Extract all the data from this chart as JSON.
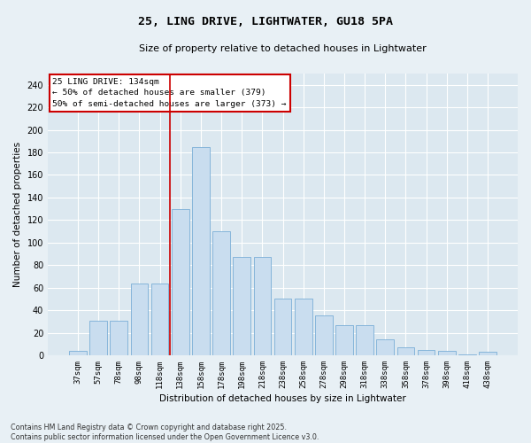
{
  "title_line1": "25, LING DRIVE, LIGHTWATER, GU18 5PA",
  "title_line2": "Size of property relative to detached houses in Lightwater",
  "xlabel": "Distribution of detached houses by size in Lightwater",
  "ylabel": "Number of detached properties",
  "bar_color": "#c9ddef",
  "bar_edge_color": "#7aaed6",
  "background_color": "#dce8f0",
  "fig_background_color": "#e8f0f5",
  "grid_color": "#ffffff",
  "categories": [
    "37sqm",
    "57sqm",
    "78sqm",
    "98sqm",
    "118sqm",
    "138sqm",
    "158sqm",
    "178sqm",
    "198sqm",
    "218sqm",
    "238sqm",
    "258sqm",
    "278sqm",
    "298sqm",
    "318sqm",
    "338sqm",
    "358sqm",
    "378sqm",
    "398sqm",
    "418sqm",
    "438sqm"
  ],
  "values": [
    4,
    31,
    31,
    64,
    64,
    130,
    185,
    110,
    87,
    87,
    50,
    50,
    35,
    27,
    27,
    14,
    7,
    5,
    4,
    1,
    3
  ],
  "vline_color": "#cc0000",
  "vline_pos": 4.5,
  "annotation_text_line1": "25 LING DRIVE: 134sqm",
  "annotation_text_line2": "← 50% of detached houses are smaller (379)",
  "annotation_text_line3": "50% of semi-detached houses are larger (373) →",
  "annotation_box_color": "#cc0000",
  "ylim": [
    0,
    250
  ],
  "yticks": [
    0,
    20,
    40,
    60,
    80,
    100,
    120,
    140,
    160,
    180,
    200,
    220,
    240
  ],
  "footnote_line1": "Contains HM Land Registry data © Crown copyright and database right 2025.",
  "footnote_line2": "Contains public sector information licensed under the Open Government Licence v3.0."
}
